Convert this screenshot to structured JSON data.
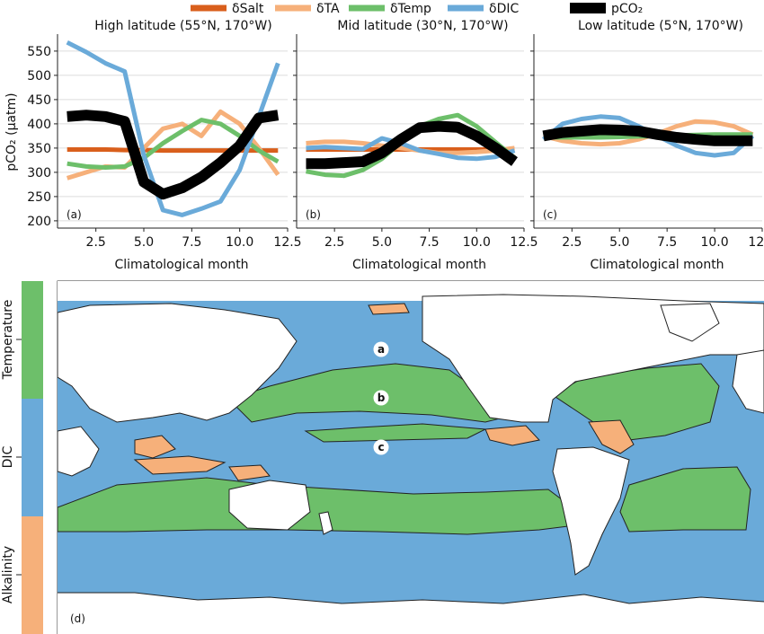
{
  "legend": [
    {
      "label": "δSalt",
      "color": "#d95f1c"
    },
    {
      "label": "δTA",
      "color": "#f6b07a"
    },
    {
      "label": "δTemp",
      "color": "#6dbf6a"
    },
    {
      "label": "δDIC",
      "color": "#6aaad9"
    },
    {
      "label": "pCO₂",
      "color": "#000000"
    }
  ],
  "chart_data": [
    {
      "type": "line",
      "panel_label": "(a)",
      "title": "High latitude (55°N, 170°W)",
      "xlabel": "Climatological month",
      "ylabel": "pCO₂ (µatm)",
      "xlim": [
        0.5,
        12.5
      ],
      "ylim": [
        185,
        585
      ],
      "xticks": [
        "2.5",
        "5.0",
        "7.5",
        "10.0",
        "12.5"
      ],
      "yticks": [
        "200",
        "250",
        "300",
        "350",
        "400",
        "450",
        "500",
        "550"
      ],
      "x": [
        1,
        2,
        3,
        4,
        5,
        6,
        7,
        8,
        9,
        10,
        11,
        12
      ],
      "series": [
        {
          "name": "δSalt",
          "color": "#d95f1c",
          "width": 5,
          "values": [
            347,
            347,
            347,
            346,
            346,
            345,
            345,
            345,
            345,
            345,
            345,
            345
          ]
        },
        {
          "name": "δTA",
          "color": "#f6b07a",
          "width": 5,
          "values": [
            288,
            300,
            312,
            310,
            350,
            390,
            400,
            375,
            425,
            400,
            350,
            295
          ]
        },
        {
          "name": "δTemp",
          "color": "#6dbf6a",
          "width": 5,
          "values": [
            318,
            312,
            310,
            312,
            330,
            360,
            385,
            408,
            400,
            375,
            345,
            322
          ]
        },
        {
          "name": "δDIC",
          "color": "#6aaad9",
          "width": 5,
          "values": [
            568,
            548,
            525,
            508,
            335,
            222,
            212,
            225,
            240,
            305,
            415,
            525
          ]
        },
        {
          "name": "pCO₂",
          "color": "#000000",
          "width": 12,
          "values": [
            415,
            418,
            415,
            405,
            280,
            255,
            268,
            290,
            320,
            355,
            412,
            418
          ]
        }
      ]
    },
    {
      "type": "line",
      "panel_label": "(b)",
      "title": "Mid latitude (30°N, 170°W)",
      "xlabel": "Climatological month",
      "xlim": [
        0.5,
        12.5
      ],
      "ylim": [
        185,
        585
      ],
      "xticks": [
        "2.5",
        "5.0",
        "7.5",
        "10.0",
        "12.5"
      ],
      "x": [
        1,
        2,
        3,
        4,
        5,
        6,
        7,
        8,
        9,
        10,
        11,
        12
      ],
      "series": [
        {
          "name": "δSalt",
          "color": "#d95f1c",
          "width": 5,
          "values": [
            347,
            347,
            347,
            347,
            347,
            347,
            347,
            347,
            347,
            347,
            347,
            347
          ]
        },
        {
          "name": "δTA",
          "color": "#f6b07a",
          "width": 5,
          "values": [
            360,
            363,
            363,
            360,
            355,
            350,
            345,
            340,
            340,
            342,
            345,
            350
          ]
        },
        {
          "name": "δTemp",
          "color": "#6dbf6a",
          "width": 5,
          "values": [
            302,
            295,
            293,
            305,
            328,
            362,
            395,
            410,
            418,
            395,
            362,
            330
          ]
        },
        {
          "name": "δDIC",
          "color": "#6aaad9",
          "width": 5,
          "values": [
            350,
            352,
            350,
            348,
            370,
            360,
            345,
            338,
            330,
            328,
            332,
            345
          ]
        },
        {
          "name": "pCO₂",
          "color": "#000000",
          "width": 12,
          "values": [
            318,
            318,
            320,
            322,
            340,
            368,
            392,
            395,
            393,
            375,
            350,
            322
          ]
        }
      ]
    },
    {
      "type": "line",
      "panel_label": "(c)",
      "title": "Low latitude (5°N, 170°W)",
      "xlabel": "Climatological month",
      "xlim": [
        0.5,
        12.5
      ],
      "ylim": [
        185,
        585
      ],
      "xticks": [
        "2.5",
        "5.0",
        "7.5",
        "10.0",
        "12.5"
      ],
      "x": [
        1,
        2,
        3,
        4,
        5,
        6,
        7,
        8,
        9,
        10,
        11,
        12
      ],
      "series": [
        {
          "name": "δSalt",
          "color": "#d95f1c",
          "width": 5,
          "values": [
            375,
            375,
            375,
            375,
            375,
            375,
            375,
            375,
            375,
            375,
            375,
            375
          ]
        },
        {
          "name": "δTA",
          "color": "#f6b07a",
          "width": 5,
          "values": [
            375,
            365,
            360,
            358,
            360,
            368,
            380,
            395,
            405,
            403,
            395,
            378
          ]
        },
        {
          "name": "δTemp",
          "color": "#6dbf6a",
          "width": 5,
          "values": [
            372,
            372,
            372,
            372,
            373,
            374,
            375,
            376,
            377,
            378,
            378,
            378
          ]
        },
        {
          "name": "δDIC",
          "color": "#6aaad9",
          "width": 5,
          "values": [
            368,
            400,
            410,
            415,
            412,
            395,
            375,
            355,
            340,
            335,
            340,
            375
          ]
        },
        {
          "name": "pCO₂",
          "color": "#000000",
          "width": 12,
          "values": [
            375,
            382,
            385,
            388,
            387,
            385,
            378,
            372,
            368,
            365,
            365,
            365
          ]
        }
      ]
    },
    {
      "type": "heatmap",
      "panel_label": "(d)",
      "colorbar": [
        {
          "label": "Temperature",
          "color": "#6dbf6a"
        },
        {
          "label": "DIC",
          "color": "#6aaad9"
        },
        {
          "label": "Alkalinity",
          "color": "#f6b07a"
        }
      ],
      "markers": [
        "a",
        "b",
        "c"
      ]
    }
  ]
}
